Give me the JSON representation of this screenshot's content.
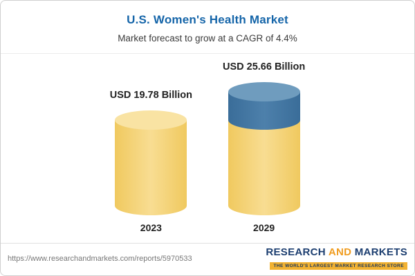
{
  "header": {
    "title": "U.S. Women's Health Market",
    "subtitle": "Market forecast to grow at a CAGR of 4.4%"
  },
  "chart_data": {
    "type": "bar",
    "title": "U.S. Women's Health Market",
    "subtitle": "Market forecast to grow at a CAGR of 4.4%",
    "categories": [
      "2023",
      "2029"
    ],
    "values": [
      19.78,
      25.66
    ],
    "value_labels": [
      "USD 19.78 Billion",
      "USD 25.66 Billion"
    ],
    "unit": "USD Billion",
    "cagr": "4.4%",
    "ylim": [
      0,
      28
    ],
    "grid": false,
    "legend": "none",
    "style": "3d-cylinder",
    "colors": {
      "base_fill": "#f5d16d",
      "base_cap": "#f9e3a3",
      "growth_fill": "#41749f",
      "growth_cap": "#6f9cbe",
      "title": "#1565a9"
    },
    "notes": "2029 cylinder shows 2023 base in yellow with growth segment (25.66 - 19.78) in blue on top"
  },
  "footer": {
    "url": "https://www.researchandmarkets.com/reports/5970533",
    "logo": {
      "research": "RESEARCH",
      "and": "AND",
      "markets": "MARKETS",
      "tagline": "THE WORLD'S LARGEST MARKET RESEARCH STORE"
    }
  }
}
